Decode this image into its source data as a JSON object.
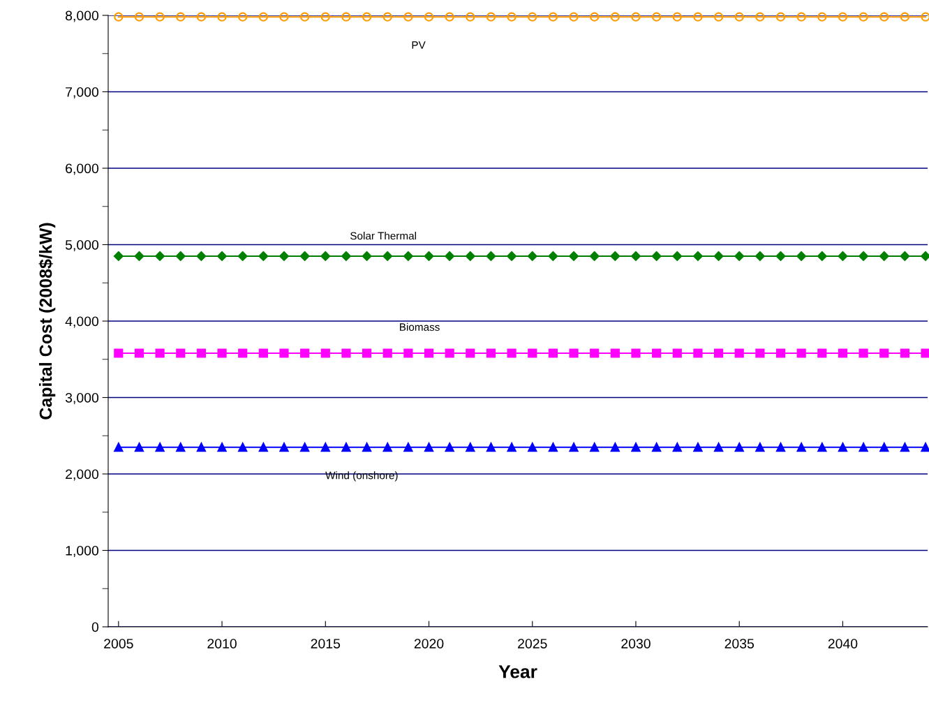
{
  "chart_data": {
    "type": "line",
    "xlabel": "Year",
    "ylabel": "Capital Cost (2008$/kW)",
    "x": [
      2005,
      2006,
      2007,
      2008,
      2009,
      2010,
      2011,
      2012,
      2013,
      2014,
      2015,
      2016,
      2017,
      2018,
      2019,
      2020,
      2021,
      2022,
      2023,
      2024,
      2025,
      2026,
      2027,
      2028,
      2029,
      2030,
      2031,
      2032,
      2033,
      2034,
      2035,
      2036,
      2037,
      2038,
      2039,
      2040,
      2041,
      2042,
      2043,
      2044
    ],
    "series": [
      {
        "name": "PV",
        "color": "#ff9900",
        "marker": "circle",
        "values": [
          7980,
          7980,
          7980,
          7980,
          7980,
          7980,
          7980,
          7980,
          7980,
          7980,
          7980,
          7980,
          7980,
          7980,
          7980,
          7980,
          7980,
          7980,
          7980,
          7980,
          7980,
          7980,
          7980,
          7980,
          7980,
          7980,
          7980,
          7980,
          7980,
          7980,
          7980,
          7980,
          7980,
          7980,
          7980,
          7980,
          7980,
          7980,
          7980,
          7980
        ]
      },
      {
        "name": "Solar Thermal",
        "color": "#008000",
        "marker": "diamond",
        "values": [
          4850,
          4850,
          4850,
          4850,
          4850,
          4850,
          4850,
          4850,
          4850,
          4850,
          4850,
          4850,
          4850,
          4850,
          4850,
          4850,
          4850,
          4850,
          4850,
          4850,
          4850,
          4850,
          4850,
          4850,
          4850,
          4850,
          4850,
          4850,
          4850,
          4850,
          4850,
          4850,
          4850,
          4850,
          4850,
          4850,
          4850,
          4850,
          4850,
          4850
        ]
      },
      {
        "name": "Biomass",
        "color": "#ff00ff",
        "marker": "square",
        "values": [
          3580,
          3580,
          3580,
          3580,
          3580,
          3580,
          3580,
          3580,
          3580,
          3580,
          3580,
          3580,
          3580,
          3580,
          3580,
          3580,
          3580,
          3580,
          3580,
          3580,
          3580,
          3580,
          3580,
          3580,
          3580,
          3580,
          3580,
          3580,
          3580,
          3580,
          3580,
          3580,
          3580,
          3580,
          3580,
          3580,
          3580,
          3580,
          3580,
          3580
        ]
      },
      {
        "name": "Wind (onshore)",
        "color": "#0000ff",
        "marker": "triangle",
        "values": [
          2350,
          2350,
          2350,
          2350,
          2350,
          2350,
          2350,
          2350,
          2350,
          2350,
          2350,
          2350,
          2350,
          2350,
          2350,
          2350,
          2350,
          2350,
          2350,
          2350,
          2350,
          2350,
          2350,
          2350,
          2350,
          2350,
          2350,
          2350,
          2350,
          2350,
          2350,
          2350,
          2350,
          2350,
          2350,
          2350,
          2350,
          2350,
          2350,
          2350
        ]
      }
    ],
    "xlim": [
      2004.5,
      2044.1
    ],
    "xticks": [
      2005,
      2010,
      2015,
      2020,
      2025,
      2030,
      2035,
      2040
    ],
    "ylim": [
      0,
      8000
    ],
    "yticks": [
      0,
      {
        "value": 1000,
        "label": "1,000"
      },
      {
        "value": 2000,
        "label": "2,000"
      },
      {
        "value": 3000,
        "label": "3,000"
      },
      {
        "value": 4000,
        "label": "4,000"
      },
      {
        "value": 5000,
        "label": "5,000"
      },
      {
        "value": 6000,
        "label": "6,000"
      },
      {
        "value": 7000,
        "label": "7,000"
      },
      {
        "value": 8000,
        "label": "8,000"
      },
      {
        "value": 500,
        "label": null
      },
      {
        "value": 1500,
        "label": null
      },
      {
        "value": 2500,
        "label": null
      },
      {
        "value": 3500,
        "label": null
      },
      {
        "value": 4500,
        "label": null
      },
      {
        "value": 5500,
        "label": null
      },
      {
        "value": 6500,
        "label": null
      },
      {
        "value": 7500,
        "label": null
      }
    ],
    "grid": "y",
    "legend": false
  }
}
